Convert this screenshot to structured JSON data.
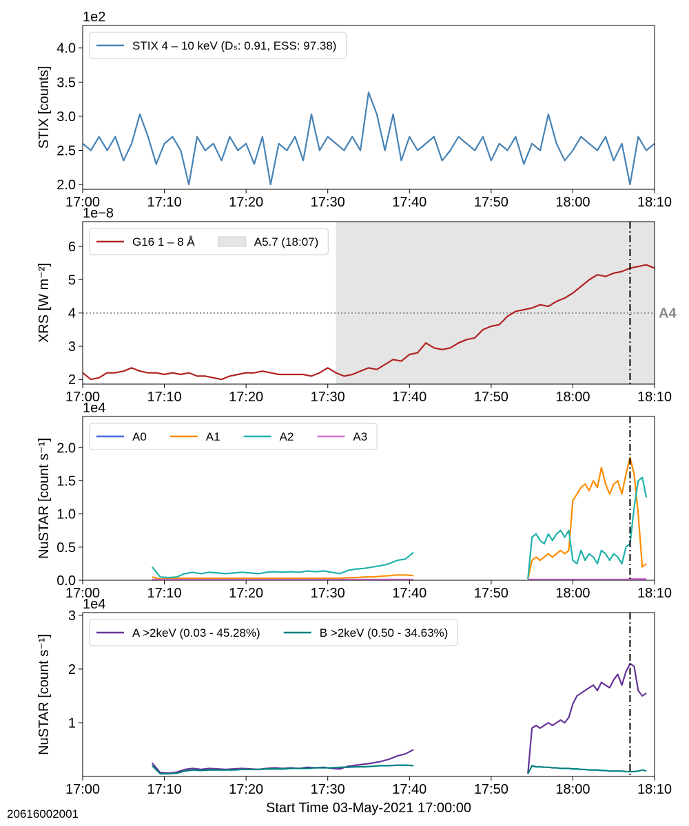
{
  "figure_id": "20616002001",
  "chart_data": [
    {
      "type": "line",
      "offset_label": "1e2",
      "ylabel": "STIX [counts]",
      "x": [
        0,
        1,
        2,
        3,
        4,
        5,
        6,
        7,
        8,
        9,
        10,
        11,
        12,
        13,
        14,
        15,
        16,
        17,
        18,
        19,
        20,
        21,
        22,
        23,
        24,
        25,
        26,
        27,
        28,
        29,
        30,
        31,
        32,
        33,
        34,
        35,
        36,
        37,
        38,
        39,
        40,
        41,
        42,
        43,
        44,
        45,
        46,
        47,
        48,
        49,
        50,
        51,
        52,
        53,
        54,
        55,
        56,
        57,
        58,
        59,
        60,
        61,
        62,
        63,
        64,
        65,
        66,
        67,
        68,
        69,
        70
      ],
      "series": [
        {
          "name": "STIX 4 – 10 keV (Dₛ: 0.91, ESS: 97.38)",
          "color": "#4682b4",
          "values": [
            2.6,
            2.5,
            2.7,
            2.5,
            2.7,
            2.35,
            2.6,
            3.03,
            2.7,
            2.3,
            2.6,
            2.7,
            2.5,
            2.0,
            2.7,
            2.5,
            2.6,
            2.35,
            2.7,
            2.5,
            2.6,
            2.3,
            2.7,
            2.0,
            2.6,
            2.5,
            2.7,
            2.35,
            3.03,
            2.5,
            2.7,
            2.6,
            2.5,
            2.7,
            2.5,
            3.35,
            3.03,
            2.5,
            3.03,
            2.35,
            2.7,
            2.5,
            2.6,
            2.7,
            2.35,
            2.5,
            2.7,
            2.6,
            2.5,
            2.7,
            2.35,
            2.6,
            2.5,
            2.7,
            2.3,
            2.6,
            2.5,
            3.03,
            2.6,
            2.35,
            2.5,
            2.7,
            2.6,
            2.5,
            2.7,
            2.35,
            2.6,
            2.0,
            2.7,
            2.5,
            2.6
          ]
        }
      ],
      "xlim": [
        0,
        70
      ],
      "xticks": [
        {
          "value": 0,
          "label": "17:00"
        },
        {
          "value": 10,
          "label": "17:10"
        },
        {
          "value": 20,
          "label": "17:20"
        },
        {
          "value": 30,
          "label": "17:30"
        },
        {
          "value": 40,
          "label": "17:40"
        },
        {
          "value": 50,
          "label": "17:50"
        },
        {
          "value": 60,
          "label": "18:00"
        },
        {
          "value": 70,
          "label": "18:10"
        }
      ],
      "ylim": [
        1.93,
        4.33
      ],
      "yticks": [
        {
          "value": 2,
          "label": "2.0"
        },
        2.5,
        {
          "value": 3,
          "label": "3.0"
        },
        3.5,
        {
          "value": 4,
          "label": "4.0"
        }
      ],
      "legend": "upper left"
    },
    {
      "type": "line",
      "offset_label": "1e−8",
      "ylabel": "XRS [W m⁻²]",
      "x": [
        0,
        1,
        2,
        3,
        4,
        5,
        6,
        7,
        8,
        9,
        10,
        11,
        12,
        13,
        14,
        15,
        16,
        17,
        18,
        19,
        20,
        21,
        22,
        23,
        24,
        25,
        26,
        27,
        28,
        29,
        30,
        31,
        32,
        33,
        34,
        35,
        36,
        37,
        38,
        39,
        40,
        41,
        42,
        43,
        44,
        45,
        46,
        47,
        48,
        49,
        50,
        51,
        52,
        53,
        54,
        55,
        56,
        57,
        58,
        59,
        60,
        61,
        62,
        63,
        64,
        65,
        66,
        67,
        68,
        69,
        70
      ],
      "series": [
        {
          "name": "G16 1 – 8 Å",
          "color": "#b22222",
          "values": [
            2.2,
            2.0,
            2.05,
            2.2,
            2.2,
            2.25,
            2.35,
            2.25,
            2.2,
            2.2,
            2.15,
            2.2,
            2.15,
            2.2,
            2.1,
            2.1,
            2.05,
            2.0,
            2.1,
            2.15,
            2.2,
            2.2,
            2.25,
            2.2,
            2.15,
            2.15,
            2.15,
            2.15,
            2.1,
            2.2,
            2.35,
            2.2,
            2.1,
            2.15,
            2.25,
            2.35,
            2.3,
            2.45,
            2.6,
            2.55,
            2.75,
            2.8,
            3.1,
            2.95,
            2.9,
            2.95,
            3.1,
            3.2,
            3.25,
            3.5,
            3.6,
            3.65,
            3.9,
            4.05,
            4.1,
            4.15,
            4.25,
            4.2,
            4.35,
            4.45,
            4.6,
            4.8,
            5.0,
            5.15,
            5.1,
            5.2,
            5.25,
            5.35,
            5.4,
            5.45,
            5.35
          ]
        }
      ],
      "shade": [
        31,
        70
      ],
      "shade_label": "A5.7 (18:07)",
      "shade_color": "#e5e5e5",
      "hline": 4,
      "hline_label": "A4",
      "vline": 67,
      "xlim": [
        0,
        70
      ],
      "xticks": [
        {
          "value": 0,
          "label": "17:00"
        },
        {
          "value": 10,
          "label": "17:10"
        },
        {
          "value": 20,
          "label": "17:20"
        },
        {
          "value": 30,
          "label": "17:30"
        },
        {
          "value": 40,
          "label": "17:40"
        },
        {
          "value": 50,
          "label": "17:50"
        },
        {
          "value": 60,
          "label": "18:00"
        },
        {
          "value": 70,
          "label": "18:10"
        }
      ],
      "ylim": [
        1.86,
        6.75
      ],
      "yticks": [
        2,
        3,
        4,
        5,
        6
      ],
      "legend": "upper left"
    },
    {
      "type": "line",
      "offset_label": "1e4",
      "ylabel": "NuSTAR [count s⁻¹]",
      "x": [
        8.5,
        9.5,
        10.5,
        11.5,
        12.5,
        13.5,
        14.5,
        15.5,
        16.5,
        17.5,
        18.5,
        19.5,
        20.5,
        21.5,
        22.5,
        23.5,
        24.5,
        25.5,
        26.5,
        27.5,
        28.5,
        29.5,
        30.5,
        31.5,
        32.5,
        33.5,
        34.5,
        35.5,
        36.5,
        37.5,
        38.5,
        39.5,
        40.5,
        47,
        54.5,
        55,
        55.5,
        56,
        56.5,
        57,
        57.5,
        58,
        58.5,
        59,
        59.5,
        60,
        60.5,
        61,
        61.5,
        62,
        62.5,
        63,
        63.5,
        64,
        64.5,
        65,
        65.5,
        66,
        66.5,
        67,
        67.5,
        68,
        68.5,
        69
      ],
      "series": [
        {
          "name": "A0",
          "color": "#4169e1",
          "values": [
            0.01,
            0.01,
            0.01,
            0.01,
            0.01,
            0.01,
            0.01,
            0.01,
            0.01,
            0.01,
            0.01,
            0.01,
            0.01,
            0.01,
            0.01,
            0.01,
            0.01,
            0.01,
            0.01,
            0.01,
            0.01,
            0.01,
            0.01,
            0.01,
            0.01,
            0.01,
            0.01,
            0.01,
            0.01,
            0.01,
            0.01,
            0.01,
            0.01,
            null,
            0.01,
            0.01,
            0.01,
            0.01,
            0.01,
            0.01,
            0.01,
            0.01,
            0.01,
            0.01,
            0.01,
            0.01,
            0.01,
            0.01,
            0.01,
            0.01,
            0.01,
            0.01,
            0.01,
            0.01,
            0.01,
            0.01,
            0.01,
            0.01,
            0.01,
            0.01,
            0.01,
            0.01,
            0.01,
            0.01
          ]
        },
        {
          "name": "A1",
          "color": "#ff8c00",
          "values": [
            0.05,
            0.02,
            0.02,
            0.03,
            0.03,
            0.03,
            0.03,
            0.03,
            0.03,
            0.03,
            0.03,
            0.03,
            0.03,
            0.03,
            0.03,
            0.03,
            0.03,
            0.03,
            0.03,
            0.03,
            0.03,
            0.03,
            0.03,
            0.03,
            0.04,
            0.04,
            0.05,
            0.05,
            0.06,
            0.07,
            0.08,
            0.08,
            0.07,
            null,
            0.02,
            0.3,
            0.35,
            0.3,
            0.35,
            0.4,
            0.35,
            0.4,
            0.45,
            0.4,
            0.45,
            1.2,
            1.3,
            1.4,
            1.45,
            1.35,
            1.5,
            1.4,
            1.7,
            1.45,
            1.3,
            1.45,
            1.5,
            1.3,
            1.6,
            1.85,
            1.6,
            1.0,
            0.2,
            0.25
          ]
        },
        {
          "name": "A2",
          "color": "#20b2aa",
          "values": [
            0.2,
            0.05,
            0.04,
            0.05,
            0.1,
            0.12,
            0.1,
            0.12,
            0.11,
            0.1,
            0.11,
            0.12,
            0.11,
            0.1,
            0.12,
            0.13,
            0.12,
            0.13,
            0.12,
            0.14,
            0.13,
            0.14,
            0.12,
            0.1,
            0.15,
            0.17,
            0.18,
            0.2,
            0.22,
            0.25,
            0.3,
            0.32,
            0.42,
            null,
            0.02,
            0.65,
            0.7,
            0.6,
            0.55,
            0.7,
            0.6,
            0.7,
            0.75,
            0.65,
            0.75,
            0.3,
            0.25,
            0.45,
            0.3,
            0.4,
            0.35,
            0.25,
            0.45,
            0.4,
            0.3,
            0.4,
            0.35,
            0.25,
            0.5,
            0.55,
            1.1,
            1.5,
            1.55,
            1.25
          ]
        },
        {
          "name": "A3",
          "color": "#da70d6",
          "values": [
            0.01,
            0.01,
            0.01,
            0.01,
            0.01,
            0.01,
            0.01,
            0.01,
            0.01,
            0.01,
            0.01,
            0.01,
            0.01,
            0.01,
            0.01,
            0.01,
            0.01,
            0.01,
            0.01,
            0.01,
            0.01,
            0.01,
            0.01,
            0.01,
            0.01,
            0.01,
            0.01,
            0.01,
            0.01,
            0.01,
            0.01,
            0.01,
            0.01,
            null,
            0.01,
            0.01,
            0.01,
            0.01,
            0.01,
            0.01,
            0.01,
            0.01,
            0.01,
            0.01,
            0.01,
            0.01,
            0.01,
            0.01,
            0.01,
            0.01,
            0.01,
            0.01,
            0.01,
            0.01,
            0.01,
            0.01,
            0.01,
            0.01,
            0.01,
            0.02,
            0.02,
            0.02,
            0.02,
            0.02
          ]
        }
      ],
      "vline": 67,
      "xlim": [
        0,
        70
      ],
      "xticks": [
        {
          "value": 0,
          "label": "17:00"
        },
        {
          "value": 10,
          "label": "17:10"
        },
        {
          "value": 20,
          "label": "17:20"
        },
        {
          "value": 30,
          "label": "17:30"
        },
        {
          "value": 40,
          "label": "17:40"
        },
        {
          "value": 50,
          "label": "17:50"
        },
        {
          "value": 60,
          "label": "18:00"
        },
        {
          "value": 70,
          "label": "18:10"
        }
      ],
      "ylim": [
        0,
        2.47
      ],
      "yticks": [
        {
          "value": 0,
          "label": "0.0"
        },
        0.5,
        {
          "value": 1,
          "label": "1.0"
        },
        1.5,
        {
          "value": 2,
          "label": "2.0"
        }
      ],
      "legend": "upper left"
    },
    {
      "type": "line",
      "offset_label": "1e4",
      "ylabel": "NuSTAR [count s⁻¹]",
      "xlabel": "Start Time 03-May-2021 17:00:00",
      "x": [
        8.5,
        9.5,
        10.5,
        11.5,
        12.5,
        13.5,
        14.5,
        15.5,
        16.5,
        17.5,
        18.5,
        19.5,
        20.5,
        21.5,
        22.5,
        23.5,
        24.5,
        25.5,
        26.5,
        27.5,
        28.5,
        29.5,
        30.5,
        31.5,
        32.5,
        33.5,
        34.5,
        35.5,
        36.5,
        37.5,
        38.5,
        39.5,
        40.5,
        47,
        54.5,
        55,
        55.5,
        56,
        56.5,
        57,
        57.5,
        58,
        58.5,
        59,
        59.5,
        60,
        60.5,
        61,
        61.5,
        62,
        62.5,
        63,
        63.5,
        64,
        64.5,
        65,
        65.5,
        66,
        66.5,
        67,
        67.5,
        68,
        68.5,
        69
      ],
      "series": [
        {
          "name": "A >2keV (0.03 - 45.28%)",
          "color": "#663399",
          "values": [
            0.25,
            0.07,
            0.06,
            0.08,
            0.13,
            0.15,
            0.13,
            0.15,
            0.14,
            0.13,
            0.14,
            0.15,
            0.14,
            0.13,
            0.15,
            0.16,
            0.15,
            0.16,
            0.15,
            0.17,
            0.16,
            0.17,
            0.15,
            0.14,
            0.19,
            0.21,
            0.23,
            0.25,
            0.28,
            0.32,
            0.38,
            0.42,
            0.5,
            null,
            0.05,
            0.9,
            0.95,
            0.9,
            0.95,
            1.0,
            0.95,
            1.0,
            1.05,
            1.0,
            1.1,
            1.35,
            1.5,
            1.55,
            1.6,
            1.65,
            1.7,
            1.6,
            1.75,
            1.7,
            1.65,
            1.8,
            1.9,
            1.7,
            1.95,
            2.1,
            2.05,
            1.6,
            1.5,
            1.55
          ]
        },
        {
          "name": "B >2keV (0.50 - 34.63%)",
          "color": "#008080",
          "values": [
            0.2,
            0.05,
            0.05,
            0.06,
            0.1,
            0.12,
            0.11,
            0.12,
            0.12,
            0.12,
            0.12,
            0.13,
            0.13,
            0.13,
            0.14,
            0.14,
            0.14,
            0.15,
            0.15,
            0.15,
            0.16,
            0.16,
            0.16,
            0.17,
            0.17,
            0.18,
            0.18,
            0.19,
            0.2,
            0.2,
            0.21,
            0.21,
            0.2,
            null,
            0.05,
            0.2,
            0.18,
            0.18,
            0.17,
            0.17,
            0.16,
            0.16,
            0.15,
            0.15,
            0.15,
            0.14,
            0.14,
            0.13,
            0.13,
            0.12,
            0.12,
            0.12,
            0.11,
            0.11,
            0.1,
            0.1,
            0.1,
            0.1,
            0.09,
            0.09,
            0.09,
            0.1,
            0.12,
            0.1
          ]
        }
      ],
      "vline": 67,
      "xlim": [
        0,
        70
      ],
      "xticks": [
        {
          "value": 0,
          "label": "17:00"
        },
        {
          "value": 10,
          "label": "17:10"
        },
        {
          "value": 20,
          "label": "17:20"
        },
        {
          "value": 30,
          "label": "17:30"
        },
        {
          "value": 40,
          "label": "17:40"
        },
        {
          "value": 50,
          "label": "17:50"
        },
        {
          "value": 60,
          "label": "18:00"
        },
        {
          "value": 70,
          "label": "18:10"
        }
      ],
      "ylim": [
        0,
        3.05
      ],
      "yticks": [
        1,
        2,
        3
      ],
      "legend": "upper left"
    }
  ]
}
